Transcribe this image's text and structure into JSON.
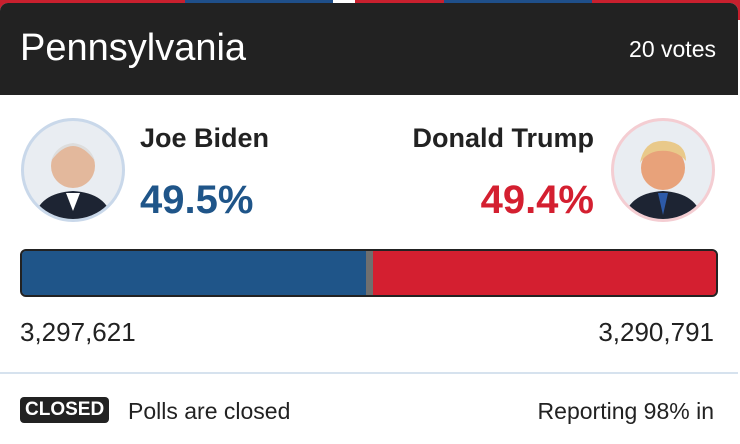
{
  "header": {
    "state": "Pennsylvania",
    "electoral_votes": "20 votes"
  },
  "candidates": [
    {
      "name": "Joe Biden",
      "share": 49.5,
      "share_label": "49.5%",
      "votes": "3,297,621",
      "color": "#1f5589"
    },
    {
      "name": "Donald Trump",
      "share": 49.4,
      "share_label": "49.4%",
      "votes": "3,290,791",
      "color": "#d41f30"
    }
  ],
  "footer": {
    "status": "CLOSED",
    "status_text": "Polls are closed",
    "reporting": "Reporting 98% in"
  }
}
